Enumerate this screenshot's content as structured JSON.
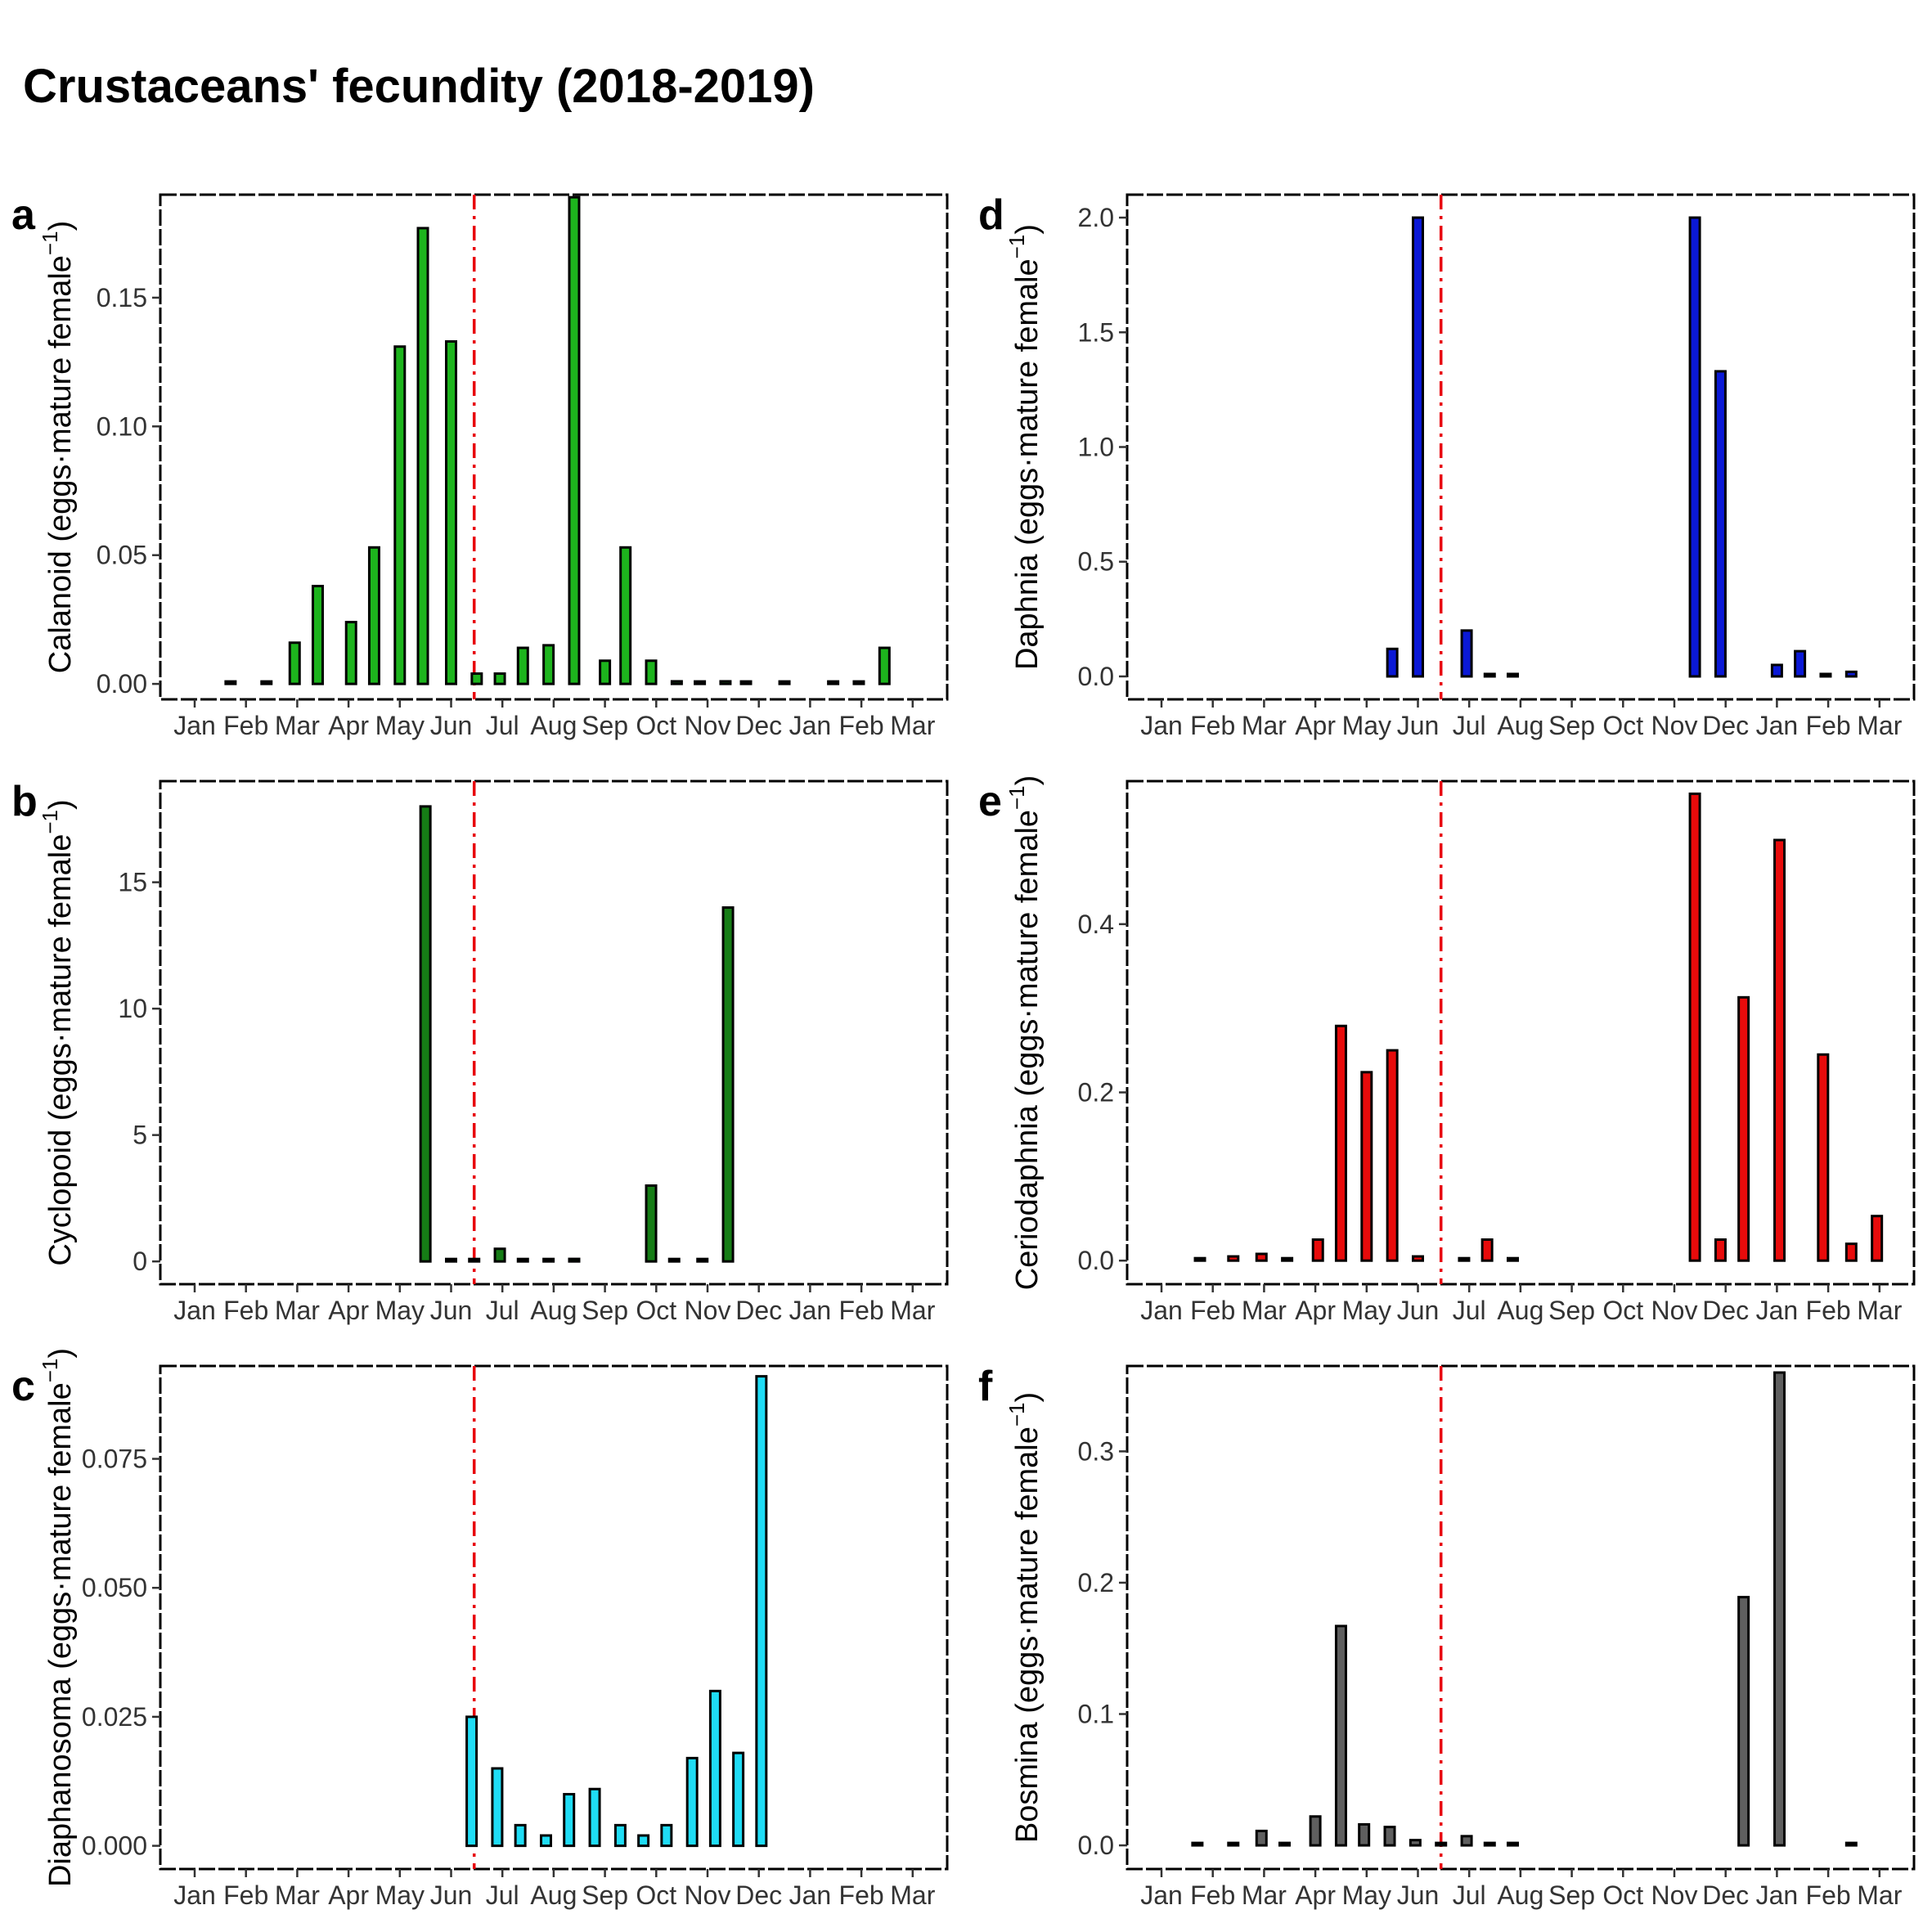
{
  "title": "Crustaceans' fecundity (2018-2019)",
  "month_labels": [
    "Jan",
    "Feb",
    "Mar",
    "Apr",
    "May",
    "Jun",
    "Jul",
    "Aug",
    "Sep",
    "Oct",
    "Nov",
    "Dec",
    "Jan",
    "Feb",
    "Mar"
  ],
  "reference_line": {
    "x_month_index": 5.45,
    "color": "#e8000b",
    "style": "dot-dash"
  },
  "chart_data": [
    {
      "panel": "a",
      "type": "bar",
      "color": "#1db41d",
      "ylabel": "Calanoid (eggs·mature female",
      "ylim": [
        -0.006,
        0.19
      ],
      "yticks": [
        0,
        0.05,
        0.1,
        0.15
      ],
      "ytick_labels": [
        "0.00",
        "0.05",
        "0.10",
        "0.15"
      ],
      "x": [
        0.7,
        1.4,
        1.95,
        2.4,
        3.05,
        3.5,
        4.0,
        4.45,
        5.0,
        5.5,
        5.95,
        6.4,
        6.9,
        7.4,
        8.0,
        8.4,
        8.9,
        9.4,
        9.85,
        10.35,
        10.75,
        11.5,
        12.45,
        12.95,
        13.45
      ],
      "values": [
        0,
        0,
        0.016,
        0.038,
        0.024,
        0.053,
        0.131,
        0.177,
        0.133,
        0.004,
        0.004,
        0.014,
        0.015,
        0.189,
        0.009,
        0.053,
        0.009,
        0.001,
        0,
        0.001,
        0,
        0,
        0,
        0,
        0.014
      ]
    },
    {
      "panel": "b",
      "type": "bar",
      "color": "#167d16",
      "ylabel": "Cyclopoid (eggs·mature female",
      "ylim": [
        -0.9,
        19
      ],
      "yticks": [
        0,
        5,
        10,
        15
      ],
      "ytick_labels": [
        "0",
        "5",
        "10",
        "15"
      ],
      "x": [
        4.5,
        5.0,
        5.45,
        5.95,
        6.4,
        6.9,
        7.4,
        8.9,
        9.35,
        9.9,
        10.4
      ],
      "values": [
        18,
        0,
        0,
        0.5,
        0,
        0,
        0.1,
        3,
        0,
        0,
        14
      ]
    },
    {
      "panel": "c",
      "type": "bar",
      "color": "#1fdcf5",
      "ylabel": "Diaphanosoma (eggs·mature female",
      "ylim": [
        -0.0045,
        0.093
      ],
      "yticks": [
        0,
        0.025,
        0.05,
        0.075
      ],
      "ytick_labels": [
        "0.000",
        "0.025",
        "0.050",
        "0.075"
      ],
      "x": [
        5.4,
        5.9,
        6.35,
        6.85,
        7.3,
        7.8,
        8.3,
        8.75,
        9.2,
        9.7,
        10.15,
        10.6,
        11.05
      ],
      "values": [
        0.025,
        0.015,
        0.004,
        0.002,
        0.01,
        0.011,
        0.004,
        0.002,
        0.004,
        0.017,
        0.03,
        0.018,
        0.091
      ]
    },
    {
      "panel": "d",
      "type": "bar",
      "color": "#0b19d6",
      "ylabel": "Daphnia (eggs·mature female",
      "ylim": [
        -0.1,
        2.1
      ],
      "yticks": [
        0,
        0.5,
        1.0,
        1.5,
        2.0
      ],
      "ytick_labels": [
        "0.0",
        "0.5",
        "1.0",
        "1.5",
        "2.0"
      ],
      "x": [
        4.5,
        5.0,
        5.95,
        6.4,
        6.85,
        10.4,
        10.9,
        12.0,
        12.45,
        12.95,
        13.45
      ],
      "values": [
        0.12,
        2.0,
        0.2,
        0,
        0,
        2.0,
        1.33,
        0.05,
        0.11,
        0,
        0.02
      ]
    },
    {
      "panel": "e",
      "type": "bar",
      "color": "#e80b0b",
      "ylabel": "Ceriodaphnia (eggs·mature female",
      "ylim": [
        -0.028,
        0.57
      ],
      "yticks": [
        0,
        0.2,
        0.4
      ],
      "ytick_labels": [
        "0.0",
        "0.2",
        "0.4"
      ],
      "x": [
        0.75,
        1.4,
        1.95,
        2.45,
        3.05,
        3.5,
        4.0,
        4.5,
        5.0,
        5.9,
        6.35,
        6.85,
        10.4,
        10.9,
        11.35,
        12.05,
        12.9,
        13.45,
        13.95
      ],
      "values": [
        0.002,
        0.005,
        0.008,
        0.002,
        0.025,
        0.279,
        0.224,
        0.25,
        0.005,
        0.002,
        0.025,
        0,
        0.555,
        0.025,
        0.313,
        0.5,
        0.245,
        0.02,
        0.053
      ]
    },
    {
      "panel": "f",
      "type": "bar",
      "color": "#5f5f5f",
      "ylabel": "Bosmina (eggs·mature female",
      "ylim": [
        -0.018,
        0.365
      ],
      "yticks": [
        0,
        0.1,
        0.2,
        0.3
      ],
      "ytick_labels": [
        "0.0",
        "0.1",
        "0.2",
        "0.3"
      ],
      "x": [
        0.7,
        1.4,
        1.95,
        2.4,
        3.0,
        3.5,
        3.95,
        4.45,
        4.95,
        5.45,
        5.95,
        6.4,
        6.85,
        11.35,
        12.05,
        13.45
      ],
      "values": [
        0,
        0,
        0.011,
        0,
        0.022,
        0.167,
        0.016,
        0.014,
        0.004,
        0,
        0.007,
        0,
        0,
        0.189,
        0.36,
        0
      ]
    }
  ]
}
